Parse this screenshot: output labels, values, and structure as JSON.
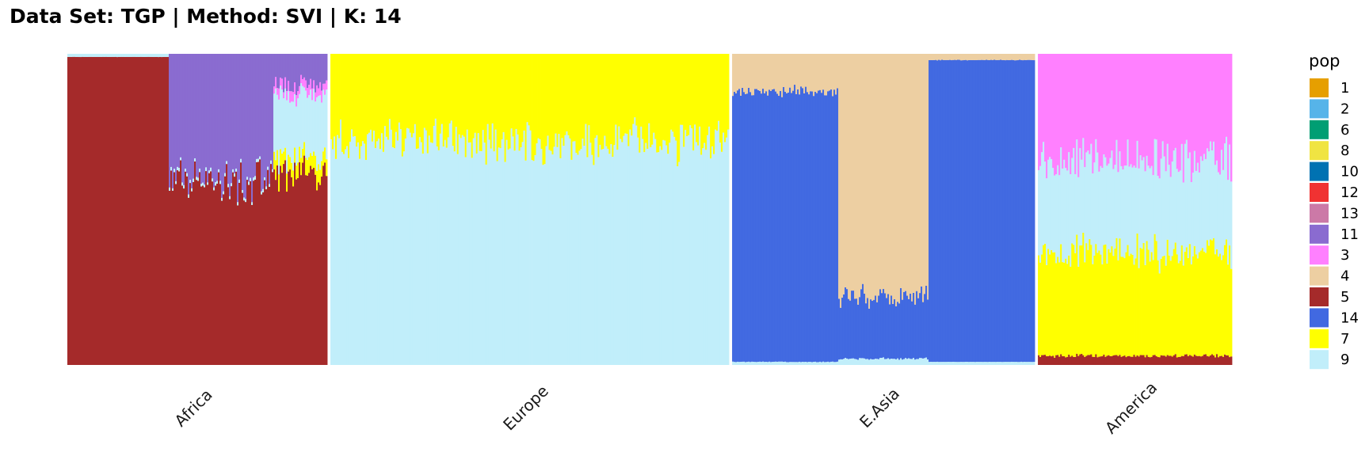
{
  "chart_data": {
    "type": "bar",
    "subtype": "stacked-proportion",
    "title": "Data Set: TGP | Method: SVI | K: 14",
    "xlabel": "",
    "ylabel": "",
    "ylim": [
      0,
      1
    ],
    "grid": false,
    "legend": {
      "title": "pop",
      "placement": "right",
      "entries": [
        {
          "label": "1",
          "color": "#E69F00"
        },
        {
          "label": "2",
          "color": "#56B4E9"
        },
        {
          "label": "6",
          "color": "#009E73"
        },
        {
          "label": "8",
          "color": "#F0E442"
        },
        {
          "label": "10",
          "color": "#0072B2"
        },
        {
          "label": "12",
          "color": "#F03232"
        },
        {
          "label": "13",
          "color": "#CC79A7"
        },
        {
          "label": "11",
          "color": "#8A6BD0"
        },
        {
          "label": "3",
          "color": "#FF80FF"
        },
        {
          "label": "4",
          "color": "#EDCFA2"
        },
        {
          "label": "5",
          "color": "#A52A2A"
        },
        {
          "label": "14",
          "color": "#4169E1"
        },
        {
          "label": "7",
          "color": "#FFFF00"
        },
        {
          "label": "9",
          "color": "#C1EEFA"
        }
      ]
    },
    "categories": [
      "Africa",
      "Europe",
      "E.Asia",
      "America"
    ],
    "panel_sample_share": [
      0.225,
      0.345,
      0.262,
      0.168
    ],
    "panels": [
      {
        "name": "Africa",
        "segments": [
          {
            "share": 0.39,
            "base": {
              "9": 0.01,
              "5": 0.99
            },
            "top": {
              "11": 0.0
            },
            "jitter": 0.02
          },
          {
            "share": 0.4,
            "base": {
              "9": 0.01,
              "5": 0.59
            },
            "top": {
              "11": 0.4
            },
            "jitter": 0.12
          },
          {
            "share": 0.21,
            "base": {
              "9": 0.2,
              "7": 0.05,
              "5": 0.62
            },
            "top": {
              "11": 0.1,
              "3": 0.03
            },
            "jitter": 0.18
          }
        ]
      },
      {
        "name": "Europe",
        "segments": [
          {
            "share": 1.0,
            "base": {
              "9": 0.72
            },
            "top": {
              "7": 0.28
            },
            "jitter": 0.14
          }
        ]
      },
      {
        "name": "E.Asia",
        "segments": [
          {
            "share": 0.35,
            "base": {
              "9": 0.01,
              "14": 0.87
            },
            "top": {
              "4": 0.12
            },
            "jitter": 0.07
          },
          {
            "share": 0.3,
            "base": {
              "9": 0.02,
              "14": 0.2
            },
            "top": {
              "4": 0.78
            },
            "jitter": 0.09
          },
          {
            "share": 0.35,
            "base": {
              "9": 0.01,
              "14": 0.97
            },
            "top": {
              "4": 0.02
            },
            "jitter": 0.02
          }
        ]
      },
      {
        "name": "America",
        "segments": [
          {
            "share": 1.0,
            "base": {
              "9": 0.3,
              "7": 0.33,
              "5": 0.03
            },
            "top": {
              "3": 0.34
            },
            "jitter": 0.14
          }
        ]
      }
    ]
  }
}
